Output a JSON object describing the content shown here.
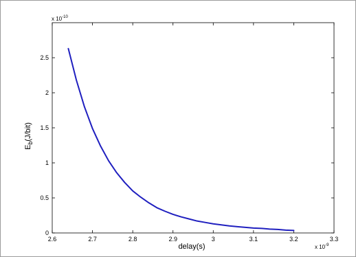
{
  "chart_data": {
    "type": "line",
    "title": "",
    "xlabel": "delay(s)",
    "ylabel_main": "E",
    "ylabel_sub": "b",
    "ylabel_rest": "(J/bit)",
    "x_multiplier_base": "x 10",
    "x_multiplier_exp": "-9",
    "y_multiplier_base": "x 10",
    "y_multiplier_exp": "-10",
    "xlim": [
      2.6,
      3.3
    ],
    "ylim": [
      0,
      3.0
    ],
    "x_ticks": [
      2.6,
      2.7,
      2.8,
      2.9,
      3.0,
      3.1,
      3.2,
      3.3
    ],
    "x_tick_labels": [
      "2.6",
      "2.7",
      "2.8",
      "2.9",
      "3",
      "3.1",
      "3.2",
      "3.3"
    ],
    "y_ticks": [
      0,
      0.5,
      1.0,
      1.5,
      2.0,
      2.5
    ],
    "y_tick_labels": [
      "0",
      "0.5",
      "1",
      "1.5",
      "2",
      "2.5"
    ],
    "grid": false,
    "line_color": "#1f1fbf",
    "series": [
      {
        "x": [
          2.64,
          2.66,
          2.68,
          2.7,
          2.72,
          2.74,
          2.76,
          2.78,
          2.8,
          2.82,
          2.84,
          2.86,
          2.88,
          2.9,
          2.92,
          2.94,
          2.96,
          2.98,
          3.0,
          3.02,
          3.04,
          3.06,
          3.08,
          3.1,
          3.12,
          3.14,
          3.16,
          3.18,
          3.2
        ],
        "values": [
          2.63,
          2.18,
          1.8,
          1.49,
          1.24,
          1.03,
          0.86,
          0.72,
          0.6,
          0.51,
          0.43,
          0.36,
          0.31,
          0.265,
          0.23,
          0.2,
          0.17,
          0.15,
          0.13,
          0.115,
          0.1,
          0.09,
          0.08,
          0.07,
          0.065,
          0.055,
          0.05,
          0.04,
          0.035
        ]
      }
    ]
  }
}
